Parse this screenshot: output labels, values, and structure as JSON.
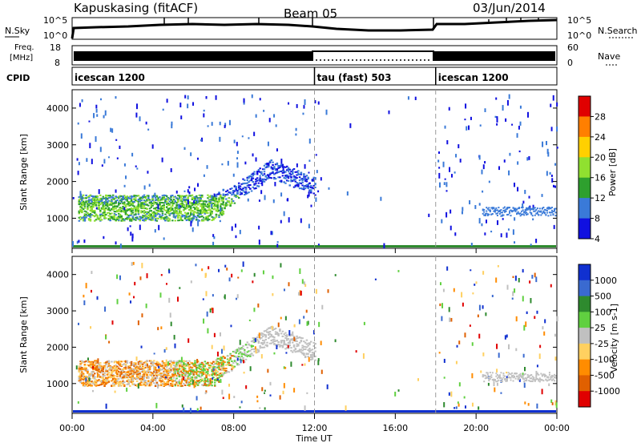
{
  "header": {
    "station": "Kapuskasing (fitACF)",
    "beam": "Beam 05",
    "date": "03/Jun/2014"
  },
  "noise_panel": {
    "left_label": "N.Sky",
    "right_label": "N.Search",
    "left_ticks": [
      "10^5",
      "10^0"
    ],
    "right_ticks": [
      "10^5",
      "10^0"
    ]
  },
  "freq_panel": {
    "left_label_1": "Freq.",
    "left_label_2": "[MHz]",
    "left_ticks": [
      "18",
      "8"
    ],
    "right_ticks": [
      "60",
      "0"
    ],
    "right_label": "Nave"
  },
  "cpid_panel": {
    "label": "CPID",
    "segments": [
      {
        "name": "icescan 1200",
        "start_hour": 0,
        "end_hour": 12
      },
      {
        "name": "tau (fast) 503",
        "start_hour": 12,
        "end_hour": 18
      },
      {
        "name": "icescan 1200",
        "start_hour": 18,
        "end_hour": 24
      }
    ]
  },
  "x_axis": {
    "label": "Time UT",
    "tick_labels": [
      "00:00",
      "04:00",
      "08:00",
      "12:00",
      "16:00",
      "20:00",
      "00:00"
    ],
    "tick_hours": [
      0,
      4,
      8,
      12,
      16,
      20,
      24
    ]
  },
  "chart_data": [
    {
      "type": "heatmap",
      "name": "power",
      "ylabel": "Slant Range [km]",
      "ylim": [
        180,
        4500
      ],
      "xlim_hours": [
        0,
        24
      ],
      "y_ticks": [
        1000,
        2000,
        3000,
        4000
      ],
      "colorbar_label": "Power [dB]",
      "colorbar_ticks": [
        "28",
        "24",
        "20",
        "16",
        "12",
        "8",
        "4"
      ],
      "colorbar_colors": [
        "#e00000",
        "#ff7f00",
        "#ffd000",
        "#90e030",
        "#2ea02e",
        "#3a7ad8",
        "#1010e0"
      ],
      "dashed_lines_hours": [
        12,
        18
      ]
    },
    {
      "type": "heatmap",
      "name": "velocity",
      "ylabel": "Slant Range [km]",
      "ylim": [
        180,
        4500
      ],
      "xlim_hours": [
        0,
        24
      ],
      "y_ticks": [
        1000,
        2000,
        3000,
        4000
      ],
      "colorbar_label": "Velocity [m s-1]",
      "colorbar_ticks": [
        "1000",
        "500",
        "100",
        "25",
        "-25",
        "-100",
        "-500",
        "-1000"
      ],
      "colorbar_colors": [
        "#1030d0",
        "#3a6ad0",
        "#2e8a2e",
        "#60d040",
        "#c0c0c0",
        "#ffd060",
        "#ff8c00",
        "#e06000",
        "#e00000"
      ],
      "dashed_lines_hours": [
        12,
        18
      ]
    }
  ]
}
